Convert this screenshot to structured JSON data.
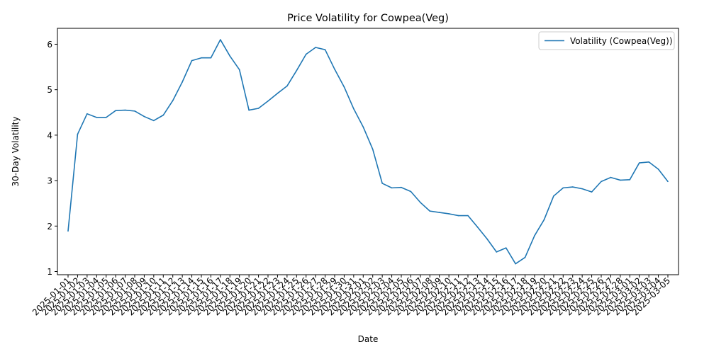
{
  "chart_data": {
    "type": "line",
    "title": "Price Volatility for Cowpea(Veg)",
    "xlabel": "Date",
    "ylabel": "30-Day Volatility",
    "ylim": [
      0.93,
      6.35
    ],
    "yticks": [
      1,
      2,
      3,
      4,
      5,
      6
    ],
    "legend_position": "top-right",
    "grid": false,
    "x": [
      "2025-01-01",
      "2025-01-02",
      "2025-01-03",
      "2025-01-04",
      "2025-01-05",
      "2025-01-06",
      "2025-01-07",
      "2025-01-08",
      "2025-01-09",
      "2025-01-10",
      "2025-01-11",
      "2025-01-12",
      "2025-01-13",
      "2025-01-14",
      "2025-01-15",
      "2025-01-16",
      "2025-01-17",
      "2025-01-18",
      "2025-01-19",
      "2025-01-20",
      "2025-01-21",
      "2025-01-22",
      "2025-01-23",
      "2025-01-24",
      "2025-01-25",
      "2025-01-26",
      "2025-01-27",
      "2025-01-28",
      "2025-01-29",
      "2025-01-30",
      "2025-01-31",
      "2025-02-01",
      "2025-02-02",
      "2025-02-03",
      "2025-02-04",
      "2025-02-05",
      "2025-02-06",
      "2025-02-07",
      "2025-02-08",
      "2025-02-09",
      "2025-02-10",
      "2025-02-11",
      "2025-02-12",
      "2025-02-13",
      "2025-02-14",
      "2025-02-15",
      "2025-02-16",
      "2025-02-17",
      "2025-02-18",
      "2025-02-19",
      "2025-02-20",
      "2025-02-21",
      "2025-02-22",
      "2025-02-23",
      "2025-02-24",
      "2025-02-25",
      "2025-02-26",
      "2025-02-27",
      "2025-02-28",
      "2025-03-01",
      "2025-03-02",
      "2025-03-03",
      "2025-03-04",
      "2025-03-05"
    ],
    "series": [
      {
        "name": "Volatility (Cowpea(Veg))",
        "color": "#1f77b4",
        "values": [
          1.89,
          4.02,
          4.47,
          4.39,
          4.39,
          4.54,
          4.55,
          4.53,
          4.41,
          4.32,
          4.44,
          4.76,
          5.17,
          5.64,
          5.7,
          5.7,
          6.1,
          5.74,
          5.44,
          4.55,
          4.59,
          4.75,
          4.92,
          5.08,
          5.42,
          5.78,
          5.93,
          5.88,
          5.45,
          5.06,
          4.58,
          4.18,
          3.69,
          2.94,
          2.84,
          2.85,
          2.76,
          2.52,
          2.33,
          2.3,
          2.27,
          2.23,
          2.23,
          1.98,
          1.72,
          1.43,
          1.52,
          1.17,
          1.31,
          1.79,
          2.14,
          2.66,
          2.84,
          2.86,
          2.82,
          2.75,
          2.98,
          3.07,
          3.01,
          3.02,
          3.39,
          3.41,
          3.25,
          2.98
        ]
      }
    ]
  }
}
